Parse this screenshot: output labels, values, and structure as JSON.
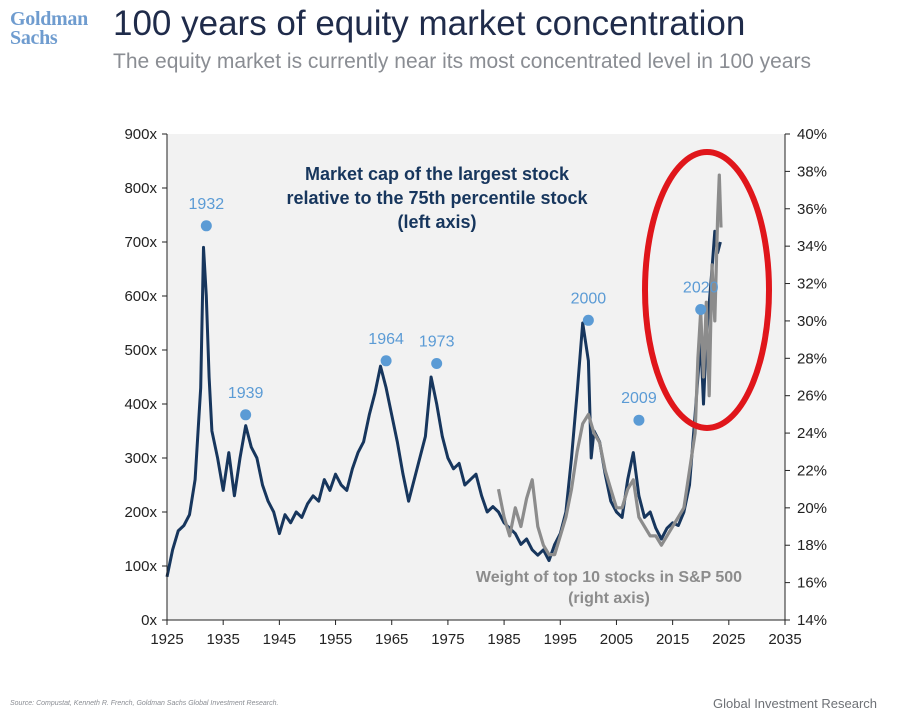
{
  "header": {
    "logo_line1": "Goldman",
    "logo_line2": "Sachs",
    "title": "100 years of equity market concentration",
    "subtitle": "The equity market is currently near its most concentrated level in 100 years"
  },
  "footer": {
    "source": "Source: Compustat, Kenneth R. French, Goldman Sachs Global Investment Research.",
    "brand": "Global Investment Research"
  },
  "colors": {
    "navy": "#17365d",
    "gray": "#8c8c8c",
    "marker": "#5b9bd5",
    "highlight_circle": "#e0161b",
    "plot_background": "#f2f2f2"
  },
  "chart_data": {
    "type": "line",
    "x_range": [
      1925,
      2035
    ],
    "x_ticks": [
      "1925",
      "1935",
      "1945",
      "1955",
      "1965",
      "1975",
      "1985",
      "1995",
      "2005",
      "2015",
      "2025",
      "2035"
    ],
    "left_axis": {
      "range": [
        0,
        900
      ],
      "ticks": [
        "0x",
        "100x",
        "200x",
        "300x",
        "400x",
        "500x",
        "600x",
        "700x",
        "800x",
        "900x"
      ]
    },
    "right_axis": {
      "range": [
        14,
        40
      ],
      "ticks": [
        "14%",
        "16%",
        "18%",
        "20%",
        "22%",
        "24%",
        "26%",
        "28%",
        "30%",
        "32%",
        "34%",
        "36%",
        "38%",
        "40%"
      ]
    },
    "grid": false,
    "series": [
      {
        "name": "Market cap of the largest stock relative to the 75th percentile stock (left axis)",
        "label_lines": [
          "Market cap of the largest stock",
          "relative to the 75th percentile stock",
          "(left axis)"
        ],
        "axis": "left",
        "color": "#17365d",
        "points": [
          [
            1925,
            80
          ],
          [
            1926,
            130
          ],
          [
            1927,
            165
          ],
          [
            1928,
            175
          ],
          [
            1929,
            195
          ],
          [
            1930,
            260
          ],
          [
            1931,
            430
          ],
          [
            1931.5,
            690
          ],
          [
            1932,
            600
          ],
          [
            1932.5,
            450
          ],
          [
            1933,
            350
          ],
          [
            1934,
            300
          ],
          [
            1935,
            240
          ],
          [
            1936,
            310
          ],
          [
            1937,
            230
          ],
          [
            1938,
            300
          ],
          [
            1939,
            360
          ],
          [
            1940,
            320
          ],
          [
            1941,
            300
          ],
          [
            1942,
            250
          ],
          [
            1943,
            220
          ],
          [
            1944,
            200
          ],
          [
            1945,
            160
          ],
          [
            1946,
            195
          ],
          [
            1947,
            180
          ],
          [
            1948,
            200
          ],
          [
            1949,
            190
          ],
          [
            1950,
            215
          ],
          [
            1951,
            230
          ],
          [
            1952,
            220
          ],
          [
            1953,
            260
          ],
          [
            1954,
            240
          ],
          [
            1955,
            270
          ],
          [
            1956,
            250
          ],
          [
            1957,
            240
          ],
          [
            1958,
            280
          ],
          [
            1959,
            310
          ],
          [
            1960,
            330
          ],
          [
            1961,
            380
          ],
          [
            1962,
            420
          ],
          [
            1963,
            470
          ],
          [
            1964,
            430
          ],
          [
            1965,
            380
          ],
          [
            1966,
            330
          ],
          [
            1967,
            270
          ],
          [
            1968,
            220
          ],
          [
            1969,
            260
          ],
          [
            1970,
            300
          ],
          [
            1971,
            340
          ],
          [
            1972,
            450
          ],
          [
            1973,
            400
          ],
          [
            1974,
            340
          ],
          [
            1975,
            300
          ],
          [
            1976,
            280
          ],
          [
            1977,
            290
          ],
          [
            1978,
            250
          ],
          [
            1979,
            260
          ],
          [
            1980,
            270
          ],
          [
            1981,
            230
          ],
          [
            1982,
            200
          ],
          [
            1983,
            210
          ],
          [
            1984,
            200
          ],
          [
            1985,
            180
          ],
          [
            1986,
            170
          ],
          [
            1987,
            160
          ],
          [
            1988,
            140
          ],
          [
            1989,
            150
          ],
          [
            1990,
            130
          ],
          [
            1991,
            120
          ],
          [
            1992,
            130
          ],
          [
            1993,
            110
          ],
          [
            1994,
            140
          ],
          [
            1995,
            160
          ],
          [
            1996,
            200
          ],
          [
            1997,
            300
          ],
          [
            1998,
            420
          ],
          [
            1999,
            550
          ],
          [
            2000,
            480
          ],
          [
            2000.5,
            300
          ],
          [
            2001,
            350
          ],
          [
            2002,
            330
          ],
          [
            2003,
            270
          ],
          [
            2004,
            220
          ],
          [
            2005,
            200
          ],
          [
            2006,
            190
          ],
          [
            2007,
            260
          ],
          [
            2008,
            310
          ],
          [
            2009,
            230
          ],
          [
            2010,
            190
          ],
          [
            2011,
            200
          ],
          [
            2012,
            170
          ],
          [
            2013,
            150
          ],
          [
            2014,
            170
          ],
          [
            2015,
            180
          ],
          [
            2016,
            175
          ],
          [
            2017,
            200
          ],
          [
            2018,
            250
          ],
          [
            2019,
            380
          ],
          [
            2020,
            520
          ],
          [
            2020.5,
            400
          ],
          [
            2021,
            520
          ],
          [
            2022,
            650
          ],
          [
            2022.5,
            720
          ],
          [
            2023,
            680
          ],
          [
            2023.5,
            700
          ]
        ]
      },
      {
        "name": "Weight of top 10 stocks in S&P 500 (right axis)",
        "label_lines": [
          "Weight of top 10 stocks in S&P 500",
          "(right axis)"
        ],
        "axis": "right",
        "color": "#8c8c8c",
        "points": [
          [
            1984,
            21
          ],
          [
            1985,
            19.5
          ],
          [
            1986,
            18.5
          ],
          [
            1987,
            20
          ],
          [
            1988,
            19
          ],
          [
            1989,
            20.5
          ],
          [
            1990,
            21.5
          ],
          [
            1991,
            19
          ],
          [
            1992,
            18
          ],
          [
            1993,
            17.5
          ],
          [
            1994,
            17.5
          ],
          [
            1995,
            18.5
          ],
          [
            1996,
            19.5
          ],
          [
            1997,
            21
          ],
          [
            1998,
            23
          ],
          [
            1999,
            24.5
          ],
          [
            2000,
            25
          ],
          [
            2001,
            24
          ],
          [
            2002,
            23.5
          ],
          [
            2003,
            22
          ],
          [
            2004,
            21
          ],
          [
            2005,
            20
          ],
          [
            2006,
            20
          ],
          [
            2007,
            21
          ],
          [
            2008,
            21.5
          ],
          [
            2009,
            19.5
          ],
          [
            2010,
            19
          ],
          [
            2011,
            18.5
          ],
          [
            2012,
            18.5
          ],
          [
            2013,
            18
          ],
          [
            2014,
            18.5
          ],
          [
            2015,
            19
          ],
          [
            2016,
            19.5
          ],
          [
            2017,
            20
          ],
          [
            2018,
            22
          ],
          [
            2019,
            24
          ],
          [
            2019.5,
            28
          ],
          [
            2020,
            30.5
          ],
          [
            2020.5,
            27
          ],
          [
            2021,
            31
          ],
          [
            2021.5,
            26
          ],
          [
            2022,
            33
          ],
          [
            2022.5,
            30
          ],
          [
            2023,
            35.5
          ],
          [
            2023.3,
            37.8
          ],
          [
            2023.6,
            35
          ]
        ]
      }
    ],
    "annotations": [
      {
        "label": "1932",
        "year": 1932,
        "value": 730
      },
      {
        "label": "1939",
        "year": 1939,
        "value": 380
      },
      {
        "label": "1964",
        "year": 1964,
        "value": 480
      },
      {
        "label": "1973",
        "year": 1973,
        "value": 475
      },
      {
        "label": "2000",
        "year": 2000,
        "value": 555
      },
      {
        "label": "2009",
        "year": 2009,
        "value": 370
      },
      {
        "label": "2020",
        "year": 2020,
        "value": 575
      }
    ]
  }
}
